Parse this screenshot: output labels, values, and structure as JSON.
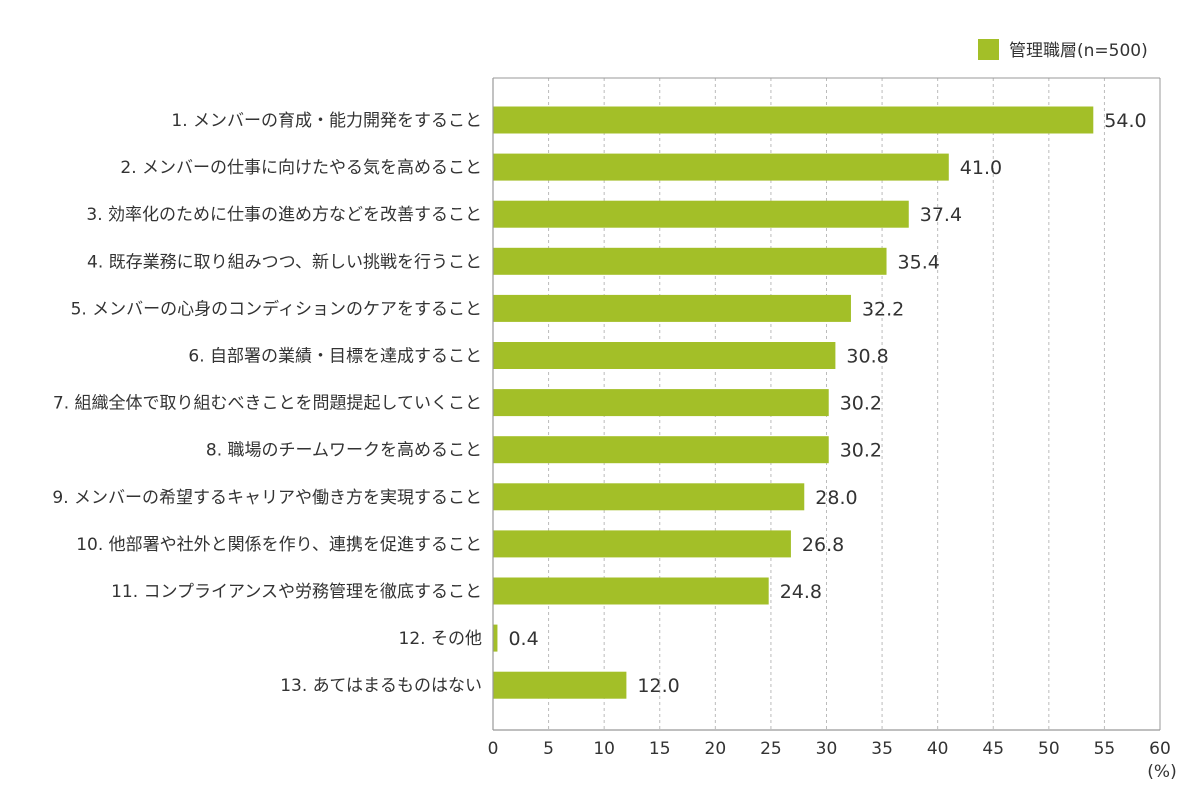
{
  "chart_data": {
    "type": "bar",
    "orientation": "horizontal",
    "categories": [
      "1. メンバーの育成・能力開発をすること",
      "2. メンバーの仕事に向けたやる気を高めること",
      "3. 効率化のために仕事の進め方などを改善すること",
      "4. 既存業務に取り組みつつ、新しい挑戦を行うこと",
      "5. メンバーの心身のコンディションのケアをすること",
      "6. 自部署の業績・目標を達成すること",
      "7. 組織全体で取り組むべきことを問題提起していくこと",
      "8. 職場のチームワークを高めること",
      "9. メンバーの希望するキャリアや働き方を実現すること",
      "10. 他部署や社外と関係を作り、連携を促進すること",
      "11. コンプライアンスや労務管理を徹底すること",
      "12. その他",
      "13. あてはまるものはない"
    ],
    "series": [
      {
        "name": "管理職層(n=500)",
        "values": [
          54.0,
          41.0,
          37.4,
          35.4,
          32.2,
          30.8,
          30.2,
          30.2,
          28.0,
          26.8,
          24.8,
          0.4,
          12.0
        ],
        "value_labels": [
          "54.0",
          "41.0",
          "37.4",
          "35.4",
          "32.2",
          "30.8",
          "30.2",
          "30.2",
          "28.0",
          "26.8",
          "24.8",
          "0.4",
          "12.0"
        ],
        "color": "#a3bf28"
      }
    ],
    "xlim": [
      0,
      60
    ],
    "xticks": [
      "0",
      "5",
      "10",
      "15",
      "20",
      "25",
      "30",
      "35",
      "40",
      "45",
      "50",
      "55",
      "60"
    ],
    "xunit": "(%)",
    "title": "",
    "xlabel": "",
    "ylabel": "",
    "grid": "vertical dashed",
    "legend_position": "top-right",
    "colors": {
      "bar": "#a3bf28",
      "axis": "#999999",
      "grid": "#bbbbbb",
      "text": "#333333"
    }
  }
}
